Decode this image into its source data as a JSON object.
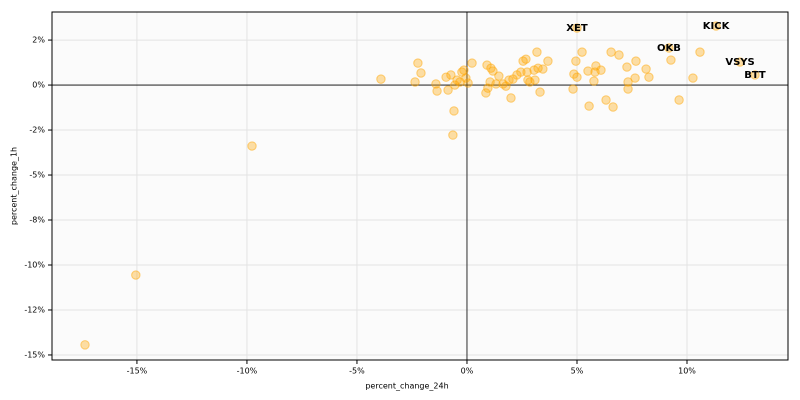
{
  "chart_data": {
    "type": "scatter",
    "x_label": "percent_change_24h",
    "y_label": "percent_change_1h",
    "color": "#ffa500",
    "grid": true,
    "xlim": [
      -18.86,
      14.59
    ],
    "ylim": [
      -15.28,
      4.06
    ],
    "xticks": [
      {
        "value": -15,
        "label": "-15%"
      },
      {
        "value": -10,
        "label": "-10%"
      },
      {
        "value": -5,
        "label": "-5%"
      },
      {
        "value": 0,
        "label": "0%"
      },
      {
        "value": 5,
        "label": "5%"
      },
      {
        "value": 10,
        "label": "10%"
      }
    ],
    "yticks": [
      {
        "value": 2.5,
        "label": "2%"
      },
      {
        "value": 0,
        "label": "0%"
      },
      {
        "value": -2.5,
        "label": "-2%"
      },
      {
        "value": -5,
        "label": "-5%"
      },
      {
        "value": -7.5,
        "label": "-8%"
      },
      {
        "value": -10,
        "label": "-10%"
      },
      {
        "value": -12.5,
        "label": "-12%"
      },
      {
        "value": -15,
        "label": "-15%"
      }
    ],
    "x": [
      -17.36,
      -15.05,
      -9.77,
      -3.91,
      -2.36,
      -2.23,
      -2.09,
      -1.41,
      -1.36,
      -0.95,
      -0.86,
      -0.73,
      -0.59,
      -0.64,
      -0.55,
      -0.45,
      -0.32,
      -0.23,
      -0.14,
      -0.05,
      0.05,
      0.23,
      0.86,
      0.91,
      0.95,
      1.05,
      1.09,
      1.18,
      1.32,
      1.45,
      1.64,
      1.77,
      1.91,
      2.0,
      2.09,
      2.27,
      2.45,
      2.55,
      2.68,
      2.73,
      2.77,
      2.86,
      3.05,
      3.09,
      3.18,
      3.23,
      3.32,
      3.45,
      3.68,
      4.82,
      4.86,
      4.95,
      5.0,
      5.23,
      5.5,
      5.55,
      5.77,
      5.82,
      5.86,
      6.09,
      6.32,
      6.55,
      6.64,
      6.91,
      7.27,
      7.32,
      7.32,
      7.68,
      7.64,
      8.14,
      8.27,
      9.27,
      9.64,
      10.27,
      10.59,
      11.32,
      5.0,
      9.18,
      12.41,
      13.09
    ],
    "y": [
      -14.44,
      -10.56,
      -3.39,
      0.33,
      0.17,
      1.22,
      0.67,
      0.06,
      -0.33,
      0.44,
      -0.28,
      0.56,
      -1.44,
      -2.78,
      0,
      0.28,
      0.17,
      0.72,
      0.83,
      0.39,
      0.11,
      1.22,
      -0.44,
      1.11,
      -0.17,
      0.17,
      0.94,
      0.78,
      0.06,
      0.5,
      0.06,
      -0.06,
      0.28,
      -0.72,
      0.33,
      0.56,
      0.72,
      1.33,
      1.44,
      0.72,
      0.28,
      0.17,
      0.83,
      0.28,
      1.83,
      0.94,
      -0.39,
      0.89,
      1.33,
      -0.22,
      0.61,
      1.33,
      0.44,
      1.83,
      0.78,
      -1.17,
      0.22,
      0.72,
      1.06,
      0.83,
      -0.83,
      1.83,
      -1.22,
      1.67,
      1.0,
      -0.22,
      0.17,
      1.33,
      0.39,
      0.89,
      0.44,
      1.39,
      -0.83,
      0.39,
      1.83,
      3.28,
      3.17,
      2.06,
      1.28,
      0.56
    ],
    "annotations": [
      {
        "text": "KICK",
        "x": 11.32,
        "y": 3.28
      },
      {
        "text": "XET",
        "x": 5.0,
        "y": 3.17
      },
      {
        "text": "OKB",
        "x": 9.18,
        "y": 2.06
      },
      {
        "text": "VSYS",
        "x": 12.41,
        "y": 1.28
      },
      {
        "text": "BTT",
        "x": 13.09,
        "y": 0.56
      }
    ]
  }
}
